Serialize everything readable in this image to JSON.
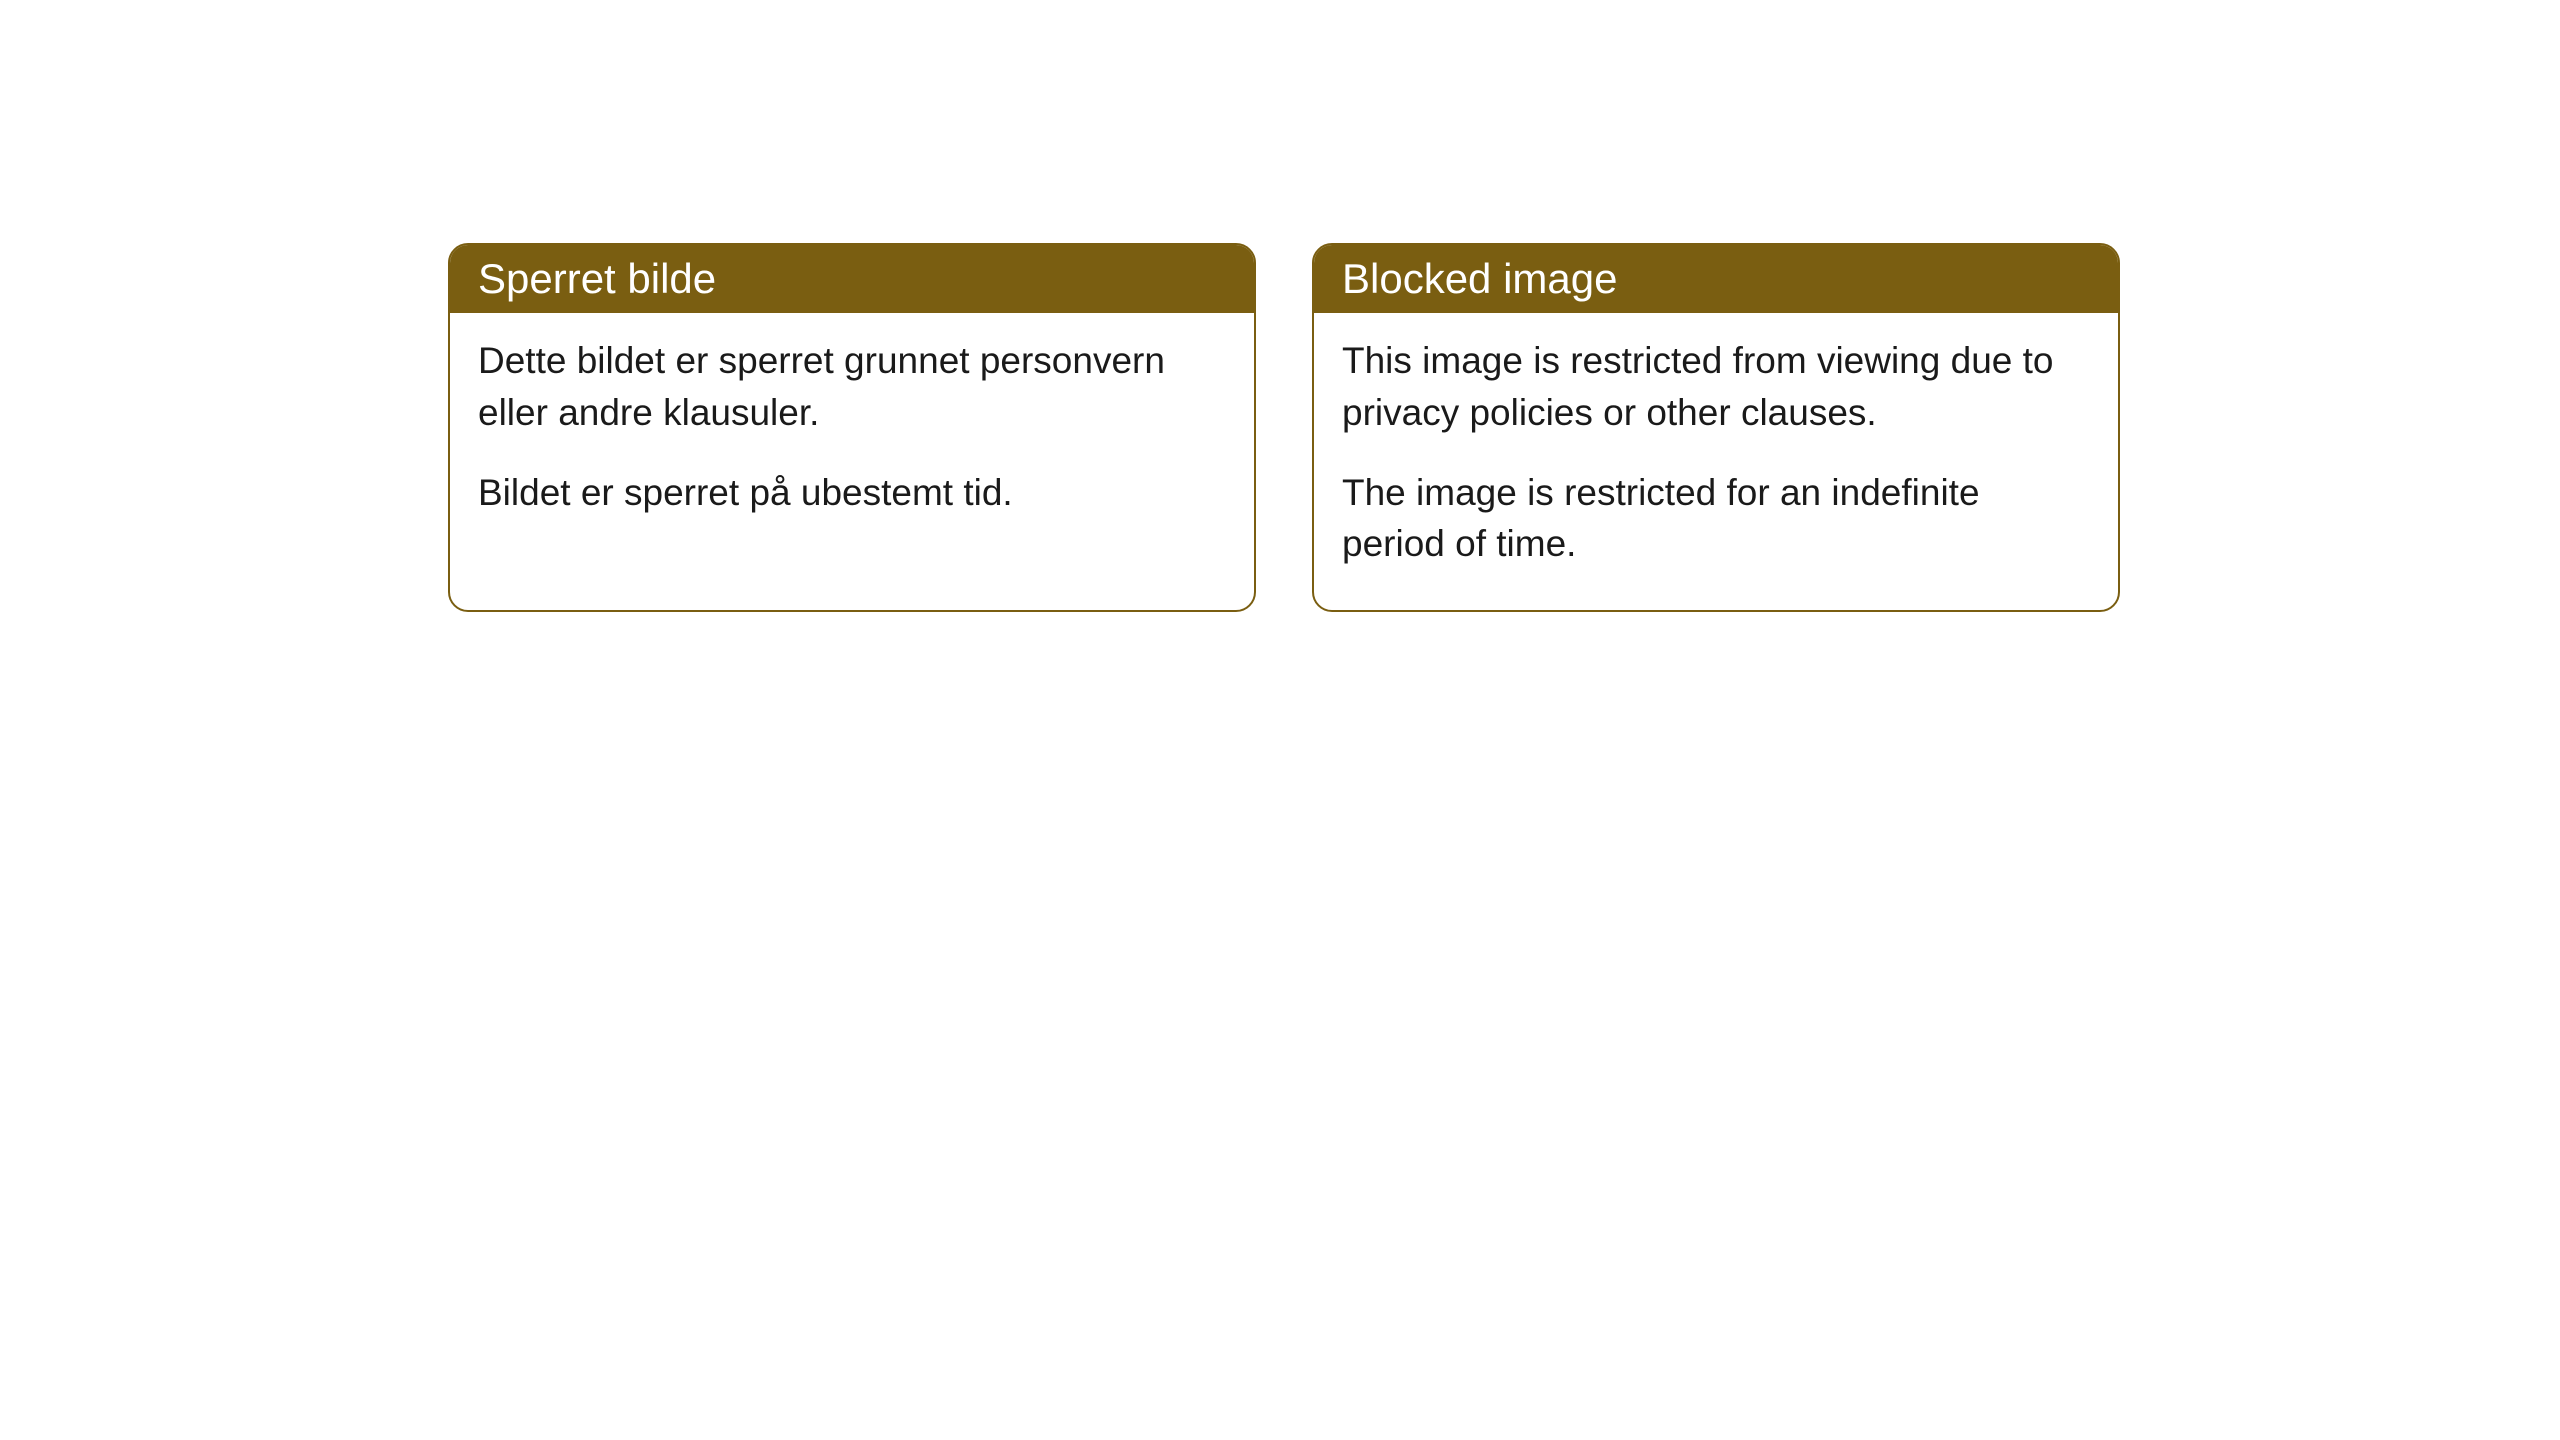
{
  "cards": [
    {
      "title": "Sperret bilde",
      "paragraph1": "Dette bildet er sperret grunnet personvern eller andre klausuler.",
      "paragraph2": "Bildet er sperret på ubestemt tid."
    },
    {
      "title": "Blocked image",
      "paragraph1": "This image is restricted from viewing due to privacy policies or other clauses.",
      "paragraph2": "The image is restricted for an indefinite period of time."
    }
  ],
  "styling": {
    "header_bg_color": "#7a5e11",
    "header_text_color": "#ffffff",
    "card_border_color": "#7a5e11",
    "card_bg_color": "#ffffff",
    "body_bg_color": "#ffffff",
    "body_text_color": "#1a1a1a",
    "border_radius": 20,
    "title_fontsize": 42,
    "body_fontsize": 37
  }
}
